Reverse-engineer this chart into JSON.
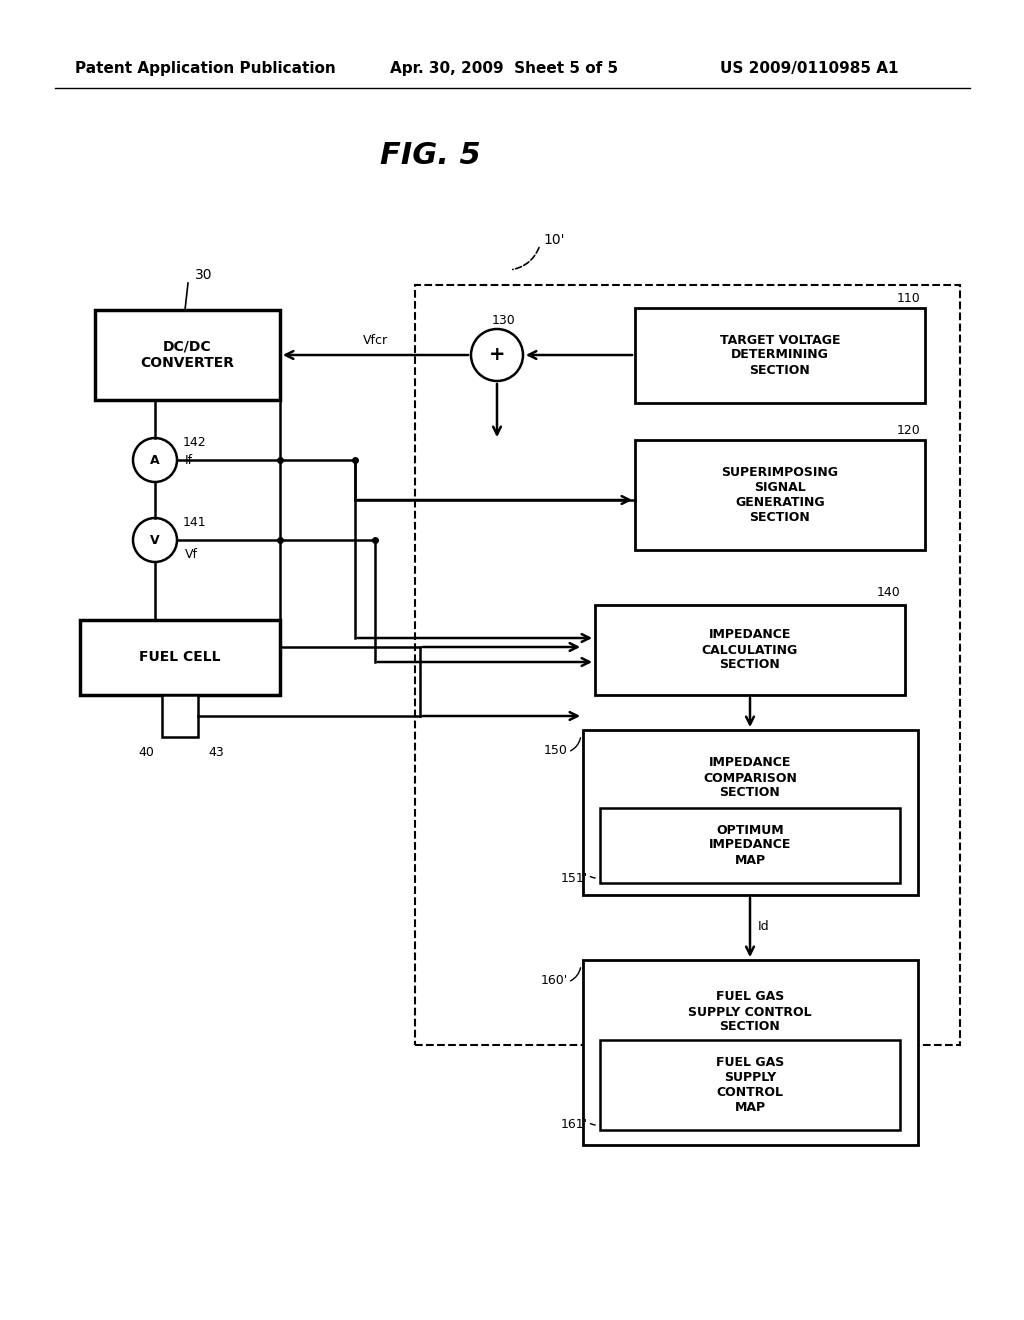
{
  "bg_color": "#ffffff",
  "header_left": "Patent Application Publication",
  "header_mid": "Apr. 30, 2009  Sheet 5 of 5",
  "header_right": "US 2009/0110985 A1",
  "title": "FIG. 5",
  "label_10": "10'",
  "label_30": "30",
  "label_110": "110",
  "label_120": "120",
  "label_130": "130",
  "label_140": "140",
  "label_141": "141",
  "label_142": "142",
  "label_150": "150",
  "label_151": "151'",
  "label_160": "160'",
  "label_161": "161'",
  "label_40": "40",
  "label_43": "43",
  "box_dcdc": "DC/DC\nCONVERTER",
  "box_fuel_cell": "FUEL CELL",
  "box_110": "TARGET VOLTAGE\nDETERMINING\nSECTION",
  "box_120": "SUPERIMPOSING\nSIGNAL\nGENERATING\nSECTION",
  "box_140": "IMPEDANCE\nCALCULATING\nSECTION",
  "box_150_outer_top": "IMPEDANCE\nCOMPARISON\nSECTION",
  "box_150_inner": "OPTIMUM\nIMPEDANCE\nMAP",
  "box_160_outer_top": "FUEL GAS\nSUPPLY CONTROL\nSECTION",
  "box_160_inner": "FUEL GAS\nSUPPLY\nCONTROL\nMAP",
  "label_Vfcr": "Vfcr",
  "label_If": "If",
  "label_Vf": "Vf",
  "label_Id": "Id"
}
